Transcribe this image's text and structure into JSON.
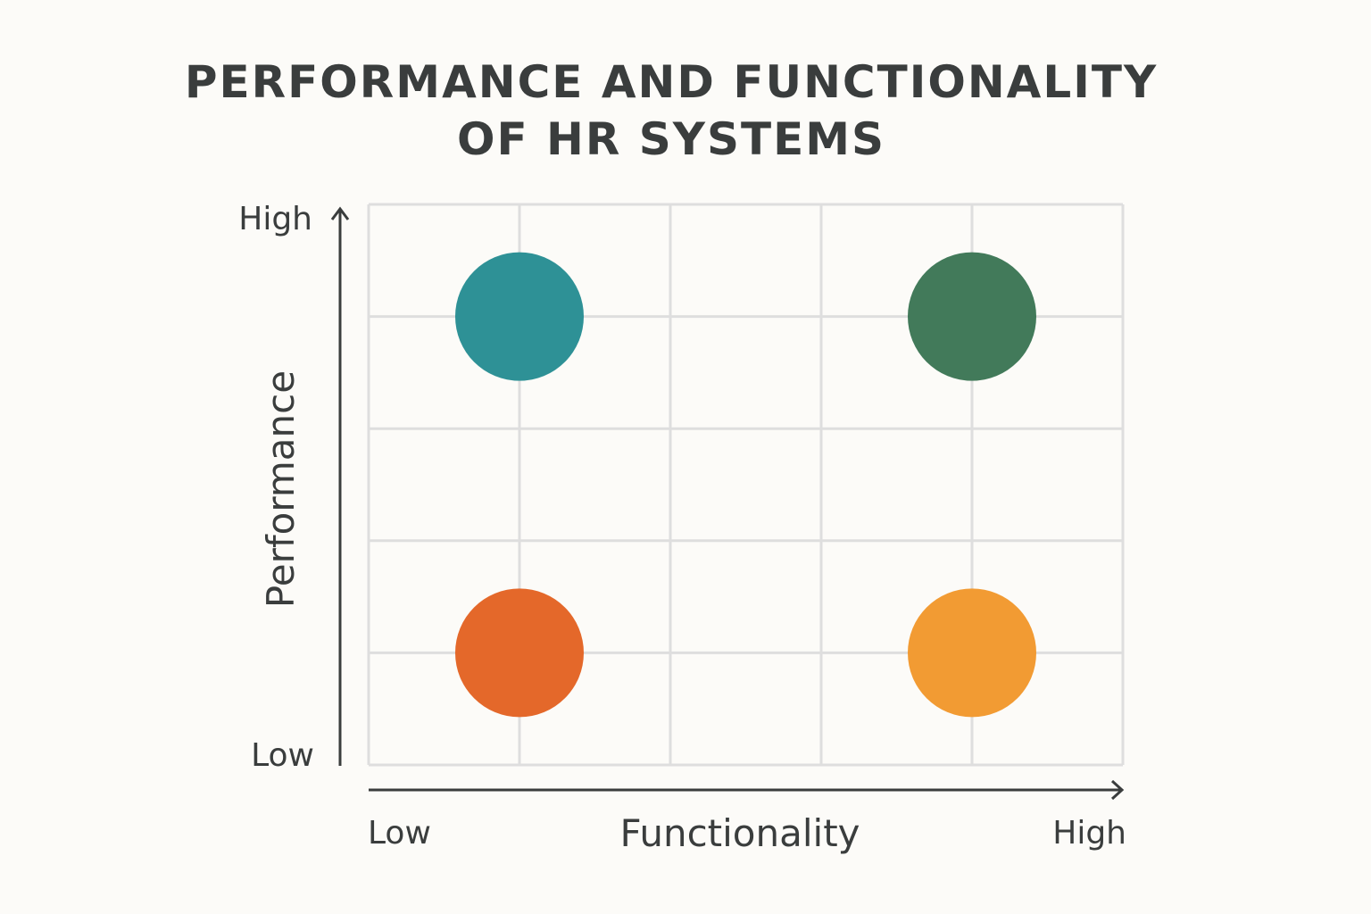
{
  "chart_data": {
    "type": "scatter",
    "title_lines": [
      "PERFORMANCE AND FUNCTIONALITY",
      "OF HR SYSTEMS"
    ],
    "xlabel": "Functionality",
    "ylabel": "Performance",
    "x_tick_labels": {
      "low": "Low",
      "high": "High"
    },
    "y_tick_labels": {
      "low": "Low",
      "high": "High"
    },
    "xlim": [
      0,
      5
    ],
    "ylim": [
      0,
      5
    ],
    "grid": true,
    "points": [
      {
        "x": 1,
        "y": 4,
        "color": "#2e9196"
      },
      {
        "x": 4,
        "y": 4,
        "color": "#427a5a"
      },
      {
        "x": 1,
        "y": 1,
        "color": "#e4682a"
      },
      {
        "x": 4,
        "y": 1,
        "color": "#f29b33"
      }
    ]
  }
}
